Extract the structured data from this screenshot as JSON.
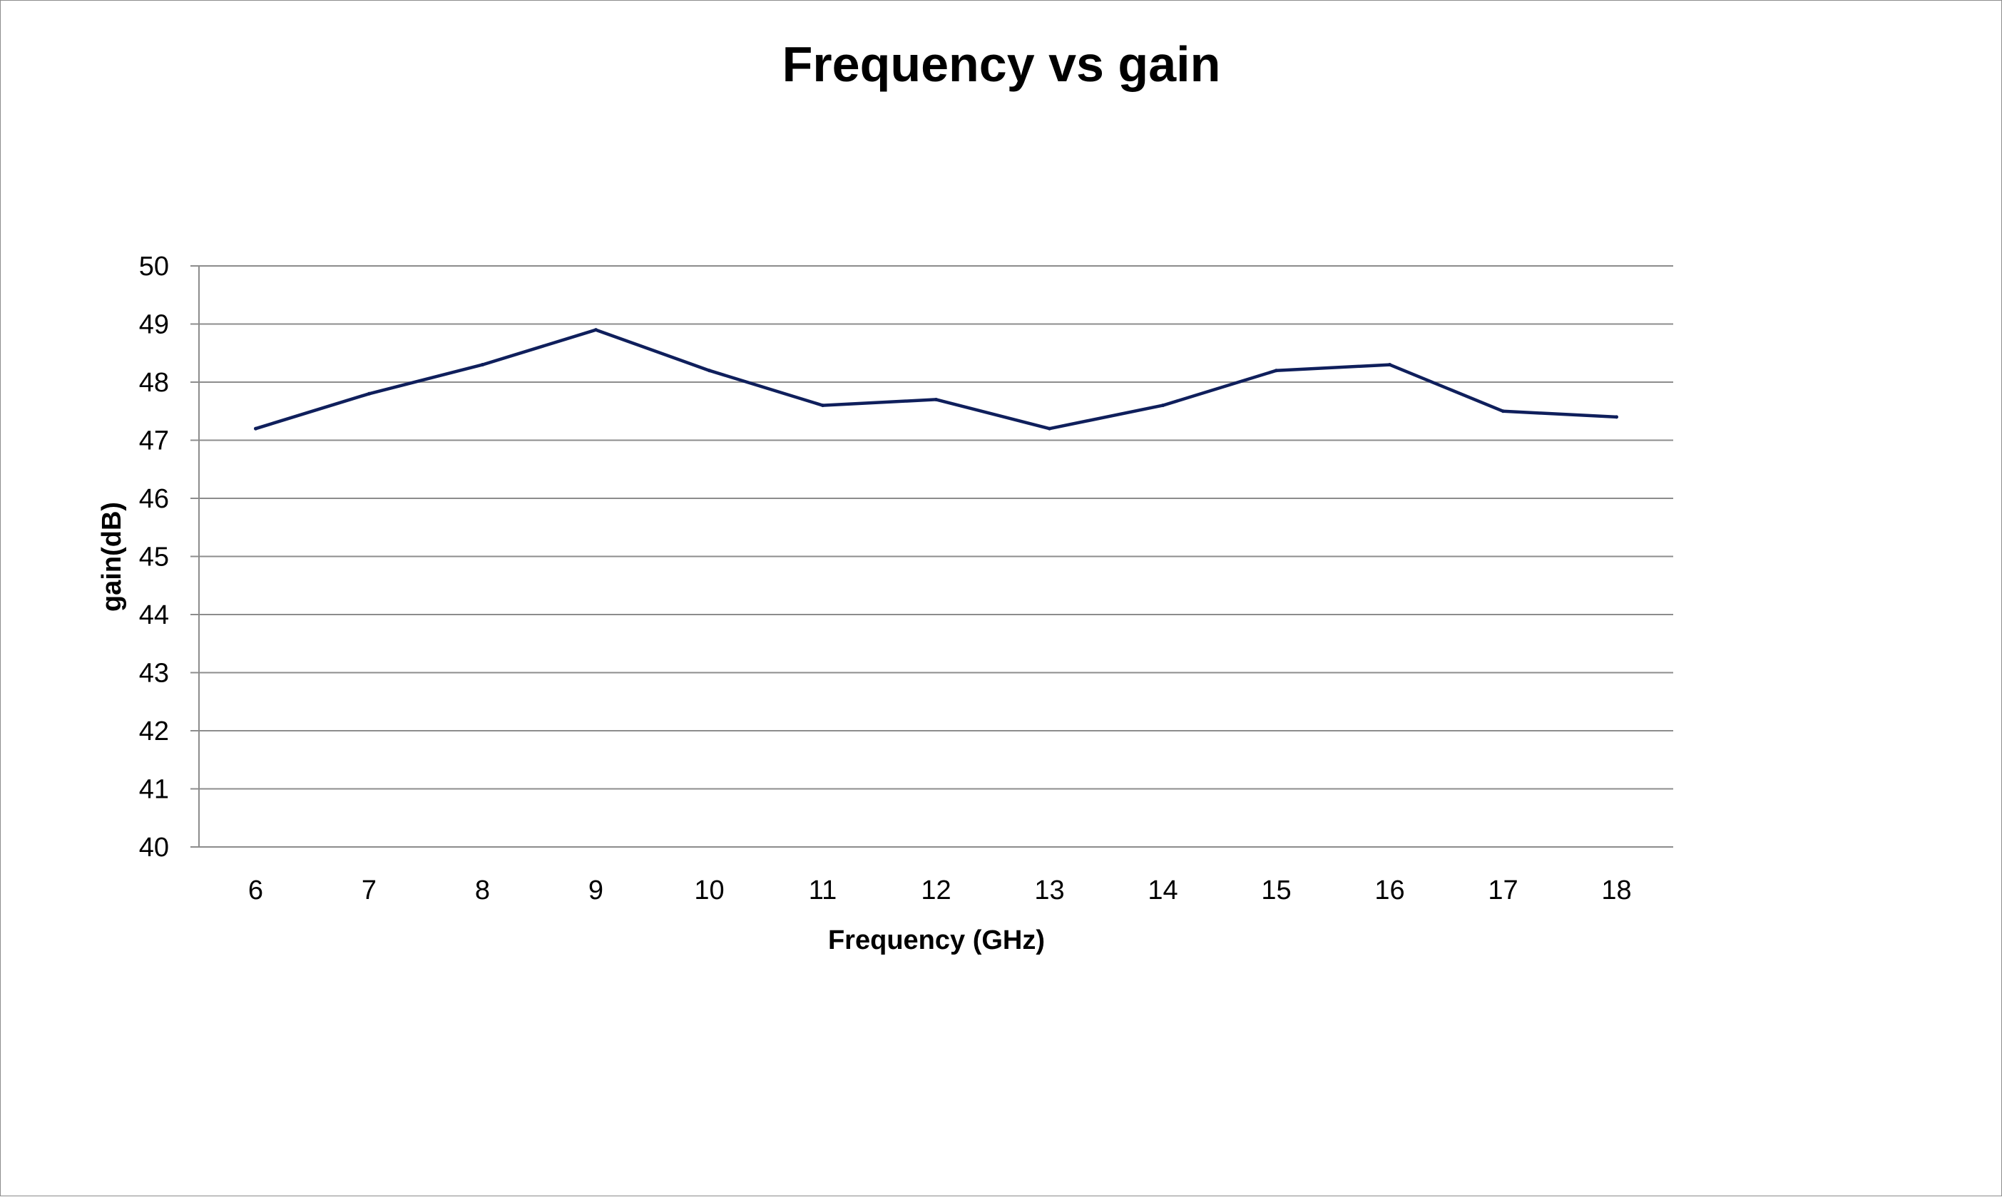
{
  "chart_data": {
    "type": "line",
    "title": "Frequency vs gain",
    "xlabel": "Frequency (GHz)",
    "ylabel": "gain(dB)",
    "categories": [
      "6",
      "7",
      "8",
      "9",
      "10",
      "11",
      "12",
      "13",
      "14",
      "15",
      "16",
      "17",
      "18"
    ],
    "series": [
      {
        "values": [
          47.2,
          47.8,
          48.3,
          48.9,
          48.2,
          47.6,
          47.7,
          47.2,
          47.6,
          48.2,
          48.3,
          47.5,
          47.4
        ]
      }
    ],
    "ylim": [
      40,
      50
    ],
    "yticks": [
      40,
      41,
      42,
      43,
      44,
      45,
      46,
      47,
      48,
      49,
      50
    ],
    "grid": true,
    "legend": "none",
    "colors": {
      "line": "#0f1f5c",
      "grid": "#8c8c8c",
      "background": "#ffffff"
    }
  }
}
